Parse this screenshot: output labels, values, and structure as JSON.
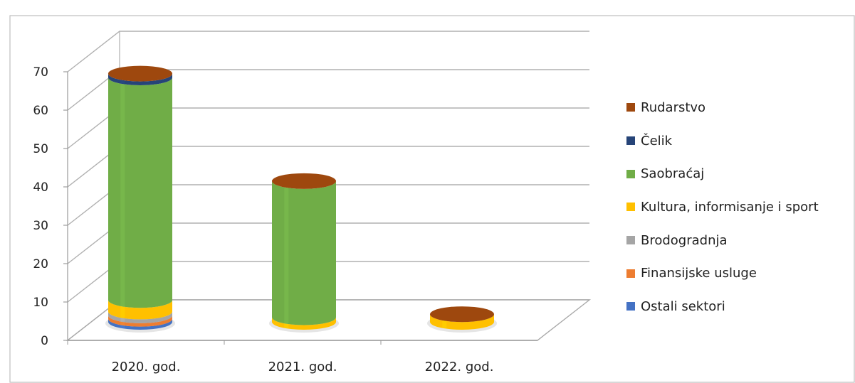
{
  "header": {
    "title": ""
  },
  "chart_data": {
    "type": "bar",
    "style": "stacked 3D cylinder",
    "categories": [
      "2020. god.",
      "2021. god.",
      "2022. god."
    ],
    "series": [
      {
        "name": "Ostali sektori",
        "color": "#4472c4",
        "values": [
          0.8,
          0,
          0
        ]
      },
      {
        "name": "Finansijske usluge",
        "color": "#ed7d31",
        "values": [
          0.9,
          0,
          0
        ]
      },
      {
        "name": "Brodogradnja",
        "color": "#a5a5a5",
        "values": [
          1.0,
          0,
          0
        ]
      },
      {
        "name": "Kultura, informisanje i sport",
        "color": "#ffc000",
        "values": [
          3.0,
          1.2,
          2.0
        ]
      },
      {
        "name": "Saobraćaj",
        "color": "#70ad47",
        "values": [
          58.0,
          35.5,
          0
        ]
      },
      {
        "name": "Čelik",
        "color": "#264478",
        "values": [
          1.0,
          0,
          0
        ]
      },
      {
        "name": "Rudarstvo",
        "color": "#9e480e",
        "values": [
          0,
          0,
          0
        ]
      }
    ],
    "ylim": [
      0,
      70
    ],
    "yticks": [
      0,
      10,
      20,
      30,
      40,
      50,
      60,
      70
    ],
    "grid": true,
    "legend": "right"
  }
}
